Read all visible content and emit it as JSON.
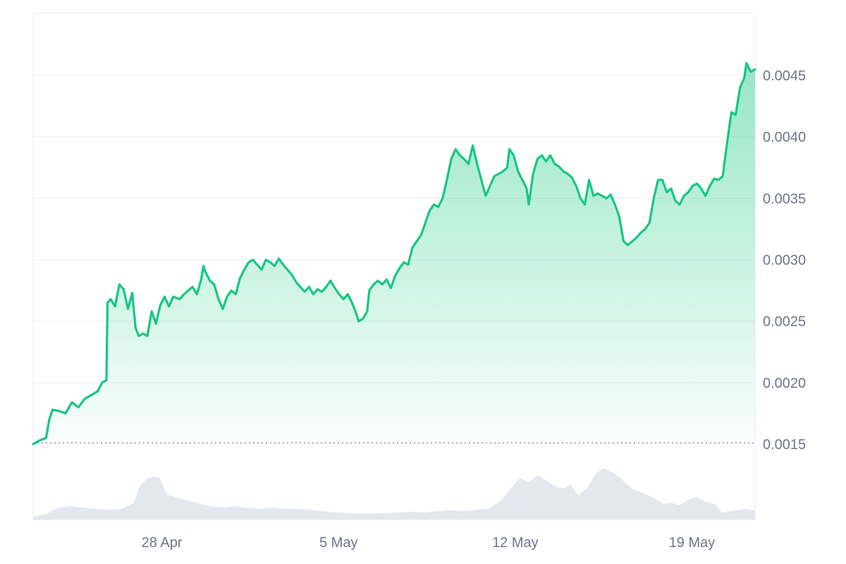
{
  "chart_data": {
    "type": "area",
    "colors": {
      "line": "#16c784",
      "fill_top": "#16c784",
      "volume": "#e4e7ee",
      "grid": "#eceef2",
      "axis_text": "#6f7584",
      "baseline": "#8a8f9c"
    },
    "y_axis": {
      "position": "right",
      "range": [
        0.0013,
        0.00495
      ],
      "ticks": [
        {
          "value": 0.0015,
          "label": "0.0015"
        },
        {
          "value": 0.002,
          "label": "0.0020"
        },
        {
          "value": 0.0025,
          "label": "0.0025"
        },
        {
          "value": 0.003,
          "label": "0.0030"
        },
        {
          "value": 0.0035,
          "label": "0.0035"
        },
        {
          "value": 0.004,
          "label": "0.0040"
        },
        {
          "value": 0.0045,
          "label": "0.0045"
        }
      ]
    },
    "x_axis": {
      "range": [
        0,
        28.6
      ],
      "ticks": [
        {
          "day": 5.1,
          "label": "28 Apr"
        },
        {
          "day": 12.1,
          "label": "5 May"
        },
        {
          "day": 19.1,
          "label": "12 May"
        },
        {
          "day": 26.1,
          "label": "19 May"
        }
      ]
    },
    "reference_line": {
      "value": 0.00151,
      "style": "dotted"
    },
    "grid": true,
    "legend": "none",
    "price_series": {
      "name": "",
      "points": [
        [
          0.0,
          0.0015
        ],
        [
          0.3,
          0.00153
        ],
        [
          0.6,
          0.00155
        ],
        [
          0.75,
          0.0017
        ],
        [
          0.9,
          0.00178
        ],
        [
          1.2,
          0.00177
        ],
        [
          1.5,
          0.00175
        ],
        [
          1.8,
          0.00184
        ],
        [
          2.1,
          0.0018
        ],
        [
          2.4,
          0.00187
        ],
        [
          2.7,
          0.0019
        ],
        [
          3.0,
          0.00193
        ],
        [
          3.2,
          0.002
        ],
        [
          3.4,
          0.00202
        ],
        [
          3.45,
          0.00265
        ],
        [
          3.6,
          0.00268
        ],
        [
          3.8,
          0.00262
        ],
        [
          4.0,
          0.0028
        ],
        [
          4.2,
          0.00276
        ],
        [
          4.4,
          0.0026
        ],
        [
          4.6,
          0.00273
        ],
        [
          4.75,
          0.00245
        ],
        [
          4.9,
          0.00238
        ],
        [
          5.1,
          0.0024
        ],
        [
          5.3,
          0.00238
        ],
        [
          5.5,
          0.00258
        ],
        [
          5.7,
          0.00248
        ],
        [
          5.9,
          0.00263
        ],
        [
          6.1,
          0.0027
        ],
        [
          6.3,
          0.00262
        ],
        [
          6.5,
          0.0027
        ],
        [
          6.8,
          0.00268
        ],
        [
          7.0,
          0.00272
        ],
        [
          7.2,
          0.00275
        ],
        [
          7.4,
          0.00278
        ],
        [
          7.6,
          0.00272
        ],
        [
          7.8,
          0.00284
        ],
        [
          7.9,
          0.00295
        ],
        [
          8.0,
          0.0029
        ],
        [
          8.2,
          0.00283
        ],
        [
          8.4,
          0.0028
        ],
        [
          8.6,
          0.00268
        ],
        [
          8.8,
          0.0026
        ],
        [
          9.0,
          0.0027
        ],
        [
          9.2,
          0.00275
        ],
        [
          9.4,
          0.00272
        ],
        [
          9.6,
          0.00285
        ],
        [
          9.8,
          0.00292
        ],
        [
          10.0,
          0.00298
        ],
        [
          10.2,
          0.003
        ],
        [
          10.4,
          0.00296
        ],
        [
          10.6,
          0.00292
        ],
        [
          10.8,
          0.003
        ],
        [
          11.0,
          0.00298
        ],
        [
          11.2,
          0.00295
        ],
        [
          11.4,
          0.00301
        ],
        [
          11.6,
          0.00296
        ],
        [
          11.8,
          0.00292
        ],
        [
          12.0,
          0.00288
        ],
        [
          12.2,
          0.00282
        ],
        [
          12.4,
          0.00278
        ],
        [
          12.6,
          0.00274
        ],
        [
          12.8,
          0.00278
        ],
        [
          13.0,
          0.00272
        ],
        [
          13.2,
          0.00276
        ],
        [
          13.4,
          0.00274
        ],
        [
          13.6,
          0.00278
        ],
        [
          13.8,
          0.00283
        ],
        [
          14.0,
          0.00277
        ],
        [
          14.2,
          0.00272
        ],
        [
          14.4,
          0.00268
        ],
        [
          14.6,
          0.00272
        ],
        [
          14.8,
          0.00265
        ],
        [
          15.0,
          0.00256
        ],
        [
          15.1,
          0.0025
        ],
        [
          15.3,
          0.00252
        ],
        [
          15.5,
          0.00258
        ],
        [
          15.6,
          0.00275
        ],
        [
          15.8,
          0.0028
        ],
        [
          16.0,
          0.00283
        ],
        [
          16.2,
          0.0028
        ],
        [
          16.4,
          0.00284
        ],
        [
          16.6,
          0.00277
        ],
        [
          16.8,
          0.00287
        ],
        [
          17.0,
          0.00293
        ],
        [
          17.2,
          0.00298
        ],
        [
          17.4,
          0.00296
        ],
        [
          17.6,
          0.0031
        ],
        [
          17.8,
          0.00315
        ],
        [
          18.0,
          0.0032
        ],
        [
          18.2,
          0.0033
        ],
        [
          18.4,
          0.0034
        ],
        [
          18.6,
          0.00345
        ],
        [
          18.8,
          0.00343
        ],
        [
          19.0,
          0.0035
        ],
        [
          19.2,
          0.00365
        ],
        [
          19.4,
          0.00382
        ],
        [
          19.6,
          0.0039
        ],
        [
          19.8,
          0.00385
        ],
        [
          20.0,
          0.00382
        ],
        [
          20.2,
          0.00378
        ],
        [
          20.4,
          0.00393
        ],
        [
          20.6,
          0.00378
        ],
        [
          20.8,
          0.00365
        ],
        [
          21.0,
          0.00352
        ],
        [
          21.2,
          0.0036
        ],
        [
          21.4,
          0.00368
        ],
        [
          21.6,
          0.0037
        ],
        [
          21.8,
          0.00372
        ],
        [
          22.0,
          0.00375
        ],
        [
          22.1,
          0.0039
        ],
        [
          22.3,
          0.00385
        ],
        [
          22.5,
          0.00372
        ],
        [
          22.7,
          0.00365
        ],
        [
          22.9,
          0.00358
        ],
        [
          23.0,
          0.00345
        ],
        [
          23.2,
          0.0037
        ],
        [
          23.4,
          0.00382
        ],
        [
          23.6,
          0.00385
        ],
        [
          23.8,
          0.0038
        ],
        [
          24.0,
          0.00385
        ],
        [
          24.2,
          0.00378
        ],
        [
          24.4,
          0.00376
        ],
        [
          24.6,
          0.00372
        ],
        [
          24.8,
          0.0037
        ],
        [
          25.0,
          0.00367
        ],
        [
          25.2,
          0.0036
        ],
        [
          25.4,
          0.0035
        ],
        [
          25.6,
          0.00345
        ],
        [
          25.8,
          0.00365
        ],
        [
          26.0,
          0.00352
        ],
        [
          26.2,
          0.00354
        ],
        [
          26.4,
          0.00352
        ],
        [
          26.6,
          0.0035
        ],
        [
          26.8,
          0.00353
        ],
        [
          27.0,
          0.00345
        ],
        [
          27.2,
          0.00335
        ],
        [
          27.4,
          0.00315
        ],
        [
          27.6,
          0.00312
        ],
        [
          27.8,
          0.00315
        ],
        [
          28.0,
          0.00318
        ],
        [
          28.2,
          0.00322
        ],
        [
          28.4,
          0.00325
        ],
        [
          28.6,
          0.0033
        ]
      ]
    },
    "price_series_tail": [
      [
        28.6,
        0.0033
      ],
      [
        28.8,
        0.0035
      ],
      [
        29.0,
        0.00365
      ],
      [
        29.2,
        0.00365
      ],
      [
        29.4,
        0.00355
      ],
      [
        29.6,
        0.00358
      ],
      [
        29.8,
        0.00348
      ],
      [
        30.0,
        0.00345
      ],
      [
        30.2,
        0.00352
      ],
      [
        30.4,
        0.00355
      ],
      [
        30.6,
        0.0036
      ],
      [
        30.8,
        0.00362
      ],
      [
        31.0,
        0.00358
      ],
      [
        31.2,
        0.00352
      ],
      [
        31.4,
        0.0036
      ],
      [
        31.6,
        0.00366
      ],
      [
        31.8,
        0.00365
      ],
      [
        32.0,
        0.00368
      ],
      [
        32.2,
        0.00395
      ],
      [
        32.4,
        0.0042
      ],
      [
        32.6,
        0.00418
      ],
      [
        32.8,
        0.0044
      ],
      [
        33.0,
        0.00448
      ],
      [
        33.1,
        0.0046
      ],
      [
        33.3,
        0.00453
      ],
      [
        33.5,
        0.00455
      ]
    ],
    "volume_series": [
      [
        0.0,
        0.05
      ],
      [
        0.5,
        0.09
      ],
      [
        1.0,
        0.2
      ],
      [
        1.5,
        0.22
      ],
      [
        2.0,
        0.2
      ],
      [
        2.5,
        0.18
      ],
      [
        3.0,
        0.16
      ],
      [
        3.5,
        0.18
      ],
      [
        4.0,
        0.28
      ],
      [
        4.2,
        0.55
      ],
      [
        4.5,
        0.68
      ],
      [
        4.8,
        0.72
      ],
      [
        5.0,
        0.7
      ],
      [
        5.3,
        0.42
      ],
      [
        5.6,
        0.38
      ],
      [
        6.0,
        0.33
      ],
      [
        6.5,
        0.28
      ],
      [
        7.0,
        0.22
      ],
      [
        7.5,
        0.2
      ],
      [
        8.0,
        0.22
      ],
      [
        8.5,
        0.2
      ],
      [
        9.0,
        0.18
      ],
      [
        9.5,
        0.2
      ],
      [
        10.0,
        0.18
      ],
      [
        10.5,
        0.18
      ],
      [
        11.0,
        0.16
      ],
      [
        11.5,
        0.14
      ],
      [
        12.0,
        0.12
      ],
      [
        12.5,
        0.11
      ],
      [
        13.0,
        0.1
      ],
      [
        13.5,
        0.1
      ],
      [
        14.0,
        0.11
      ],
      [
        14.5,
        0.12
      ],
      [
        15.0,
        0.13
      ],
      [
        15.5,
        0.12
      ],
      [
        16.0,
        0.14
      ],
      [
        16.5,
        0.16
      ],
      [
        17.0,
        0.14
      ],
      [
        17.5,
        0.16
      ],
      [
        18.0,
        0.18
      ],
      [
        18.5,
        0.3
      ],
      [
        19.0,
        0.55
      ],
      [
        19.3,
        0.7
      ],
      [
        19.6,
        0.62
      ],
      [
        20.0,
        0.74
      ],
      [
        20.3,
        0.66
      ],
      [
        20.7,
        0.55
      ],
      [
        21.0,
        0.52
      ],
      [
        21.3,
        0.58
      ],
      [
        21.6,
        0.4
      ],
      [
        22.0,
        0.55
      ],
      [
        22.3,
        0.78
      ],
      [
        22.6,
        0.86
      ],
      [
        22.9,
        0.8
      ],
      [
        23.2,
        0.72
      ],
      [
        23.5,
        0.6
      ],
      [
        23.8,
        0.5
      ],
      [
        24.2,
        0.44
      ],
      [
        24.6,
        0.36
      ],
      [
        25.0,
        0.26
      ],
      [
        25.3,
        0.28
      ],
      [
        25.6,
        0.24
      ],
      [
        26.0,
        0.34
      ],
      [
        26.3,
        0.38
      ],
      [
        26.6,
        0.3
      ],
      [
        27.0,
        0.26
      ],
      [
        27.3,
        0.12
      ],
      [
        27.6,
        0.14
      ],
      [
        28.0,
        0.16
      ],
      [
        28.3,
        0.18
      ],
      [
        28.6,
        0.14
      ]
    ]
  }
}
